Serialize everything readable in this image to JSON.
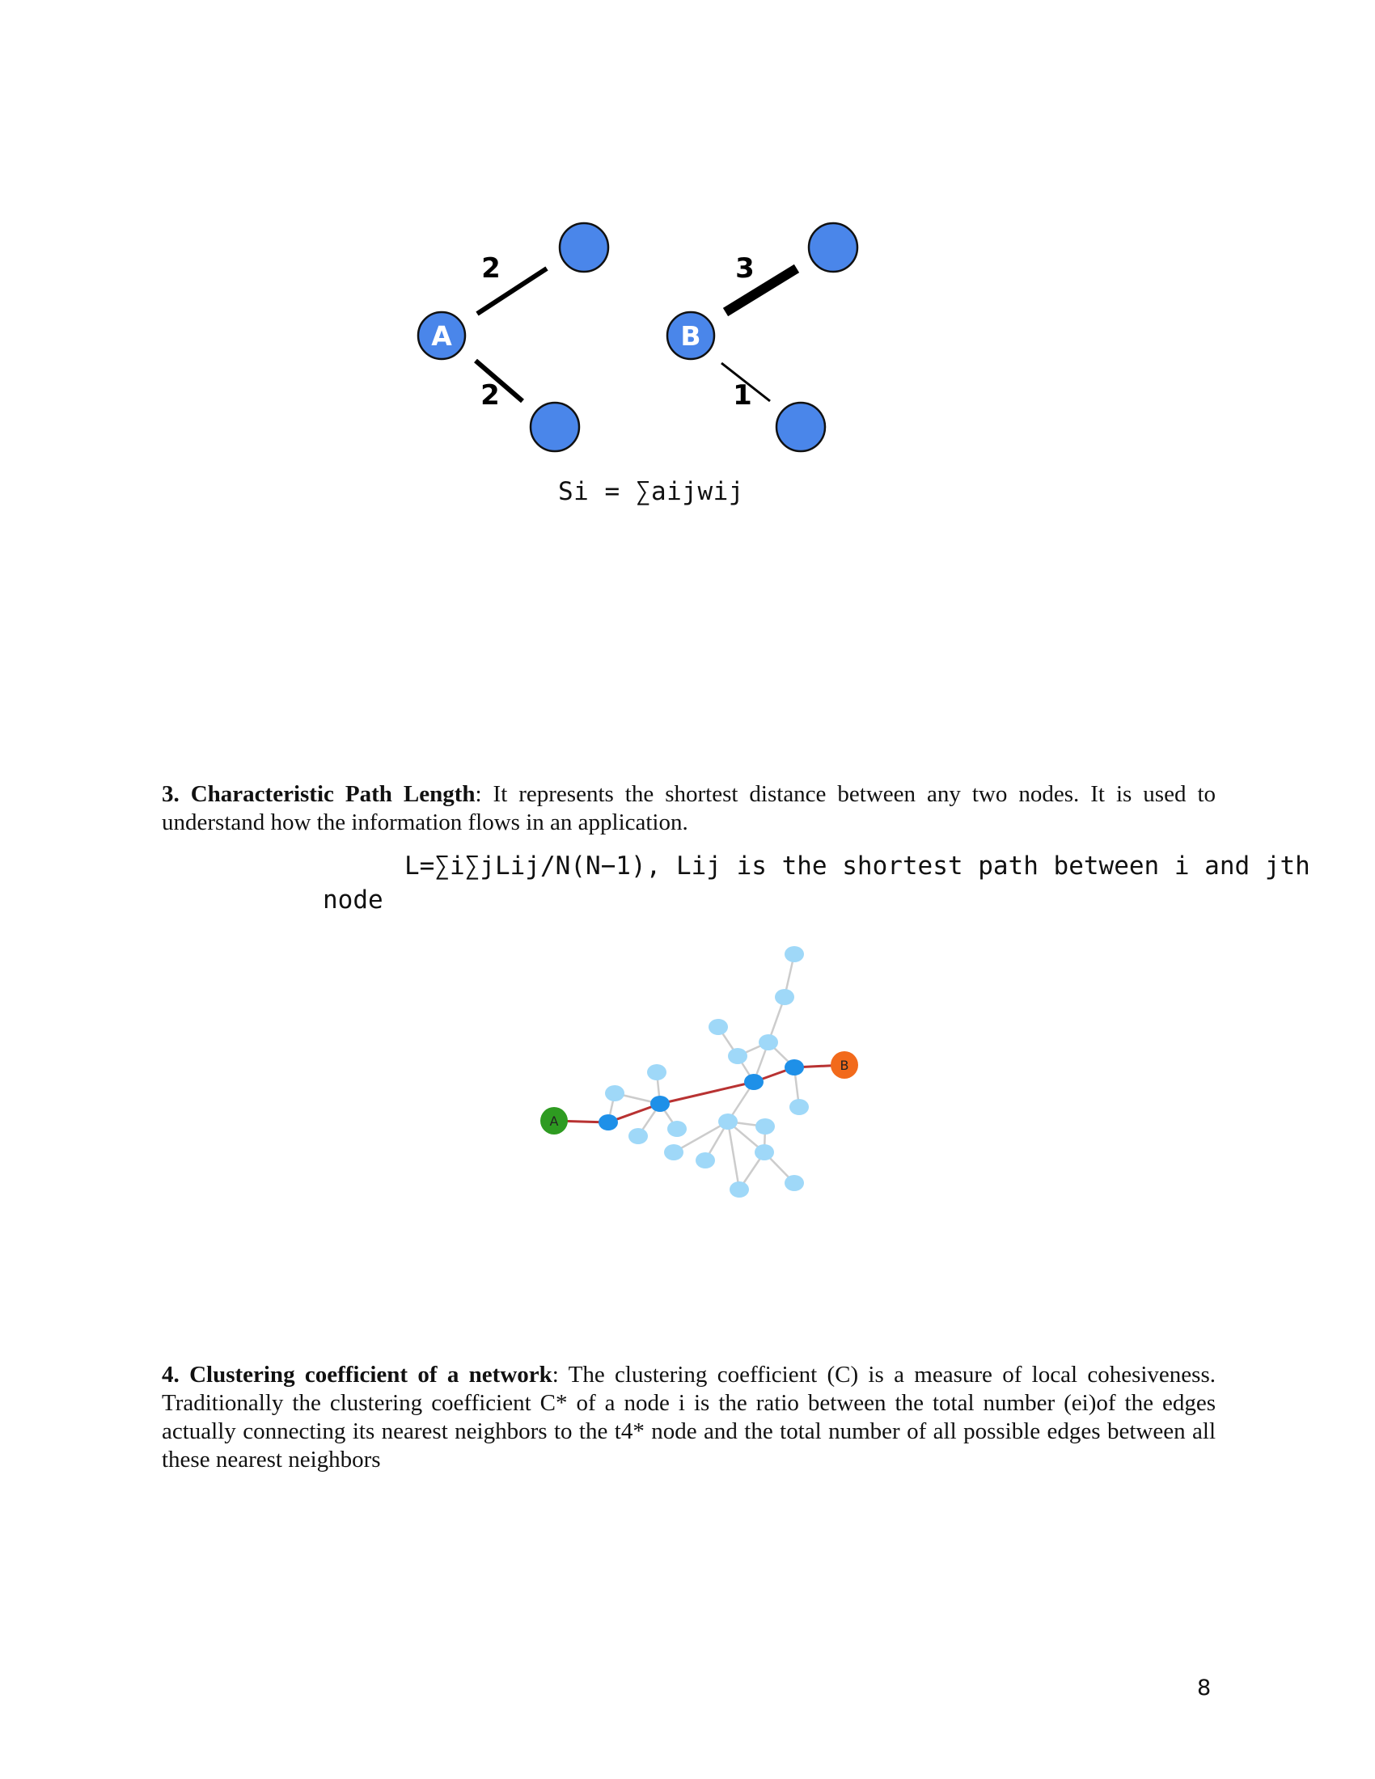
{
  "figure_strength": {
    "node_a_label": "A",
    "node_b_label": "B",
    "a_upper_weight": "2",
    "a_lower_weight": "2",
    "b_upper_weight": "3",
    "b_lower_weight": "1",
    "node_color": "#4a86ea",
    "formula": "Si = ∑aijwij"
  },
  "section3": {
    "heading": "3. Characteristic Path Length",
    "text": ": It represents the shortest distance between any two nodes. It is used to understand how the information flows in an application.",
    "formula_line1": "L=∑i∑jLij/N(N−1), Lij is the shortest path between i and jth",
    "formula_line2": "node"
  },
  "figure_path": {
    "start_label": "A",
    "end_label": "B",
    "start_color": "#2e9b21",
    "end_color": "#f26a1b",
    "path_color": "#b83232",
    "path_node_color": "#1e90e8",
    "other_node_color": "#9fd8f8",
    "edge_color": "#cccccc"
  },
  "section4": {
    "heading": "4. Clustering coefficient of a network",
    "text": ": The clustering coefficient (C) is a measure of local cohesiveness. Traditionally the clustering coefficient C* of a node i is the ratio between the total number (ei)of the edges actually connecting its nearest neighbors to the t4* node and the total number of all possible edges between all these nearest neighbors"
  },
  "page_number": "8"
}
